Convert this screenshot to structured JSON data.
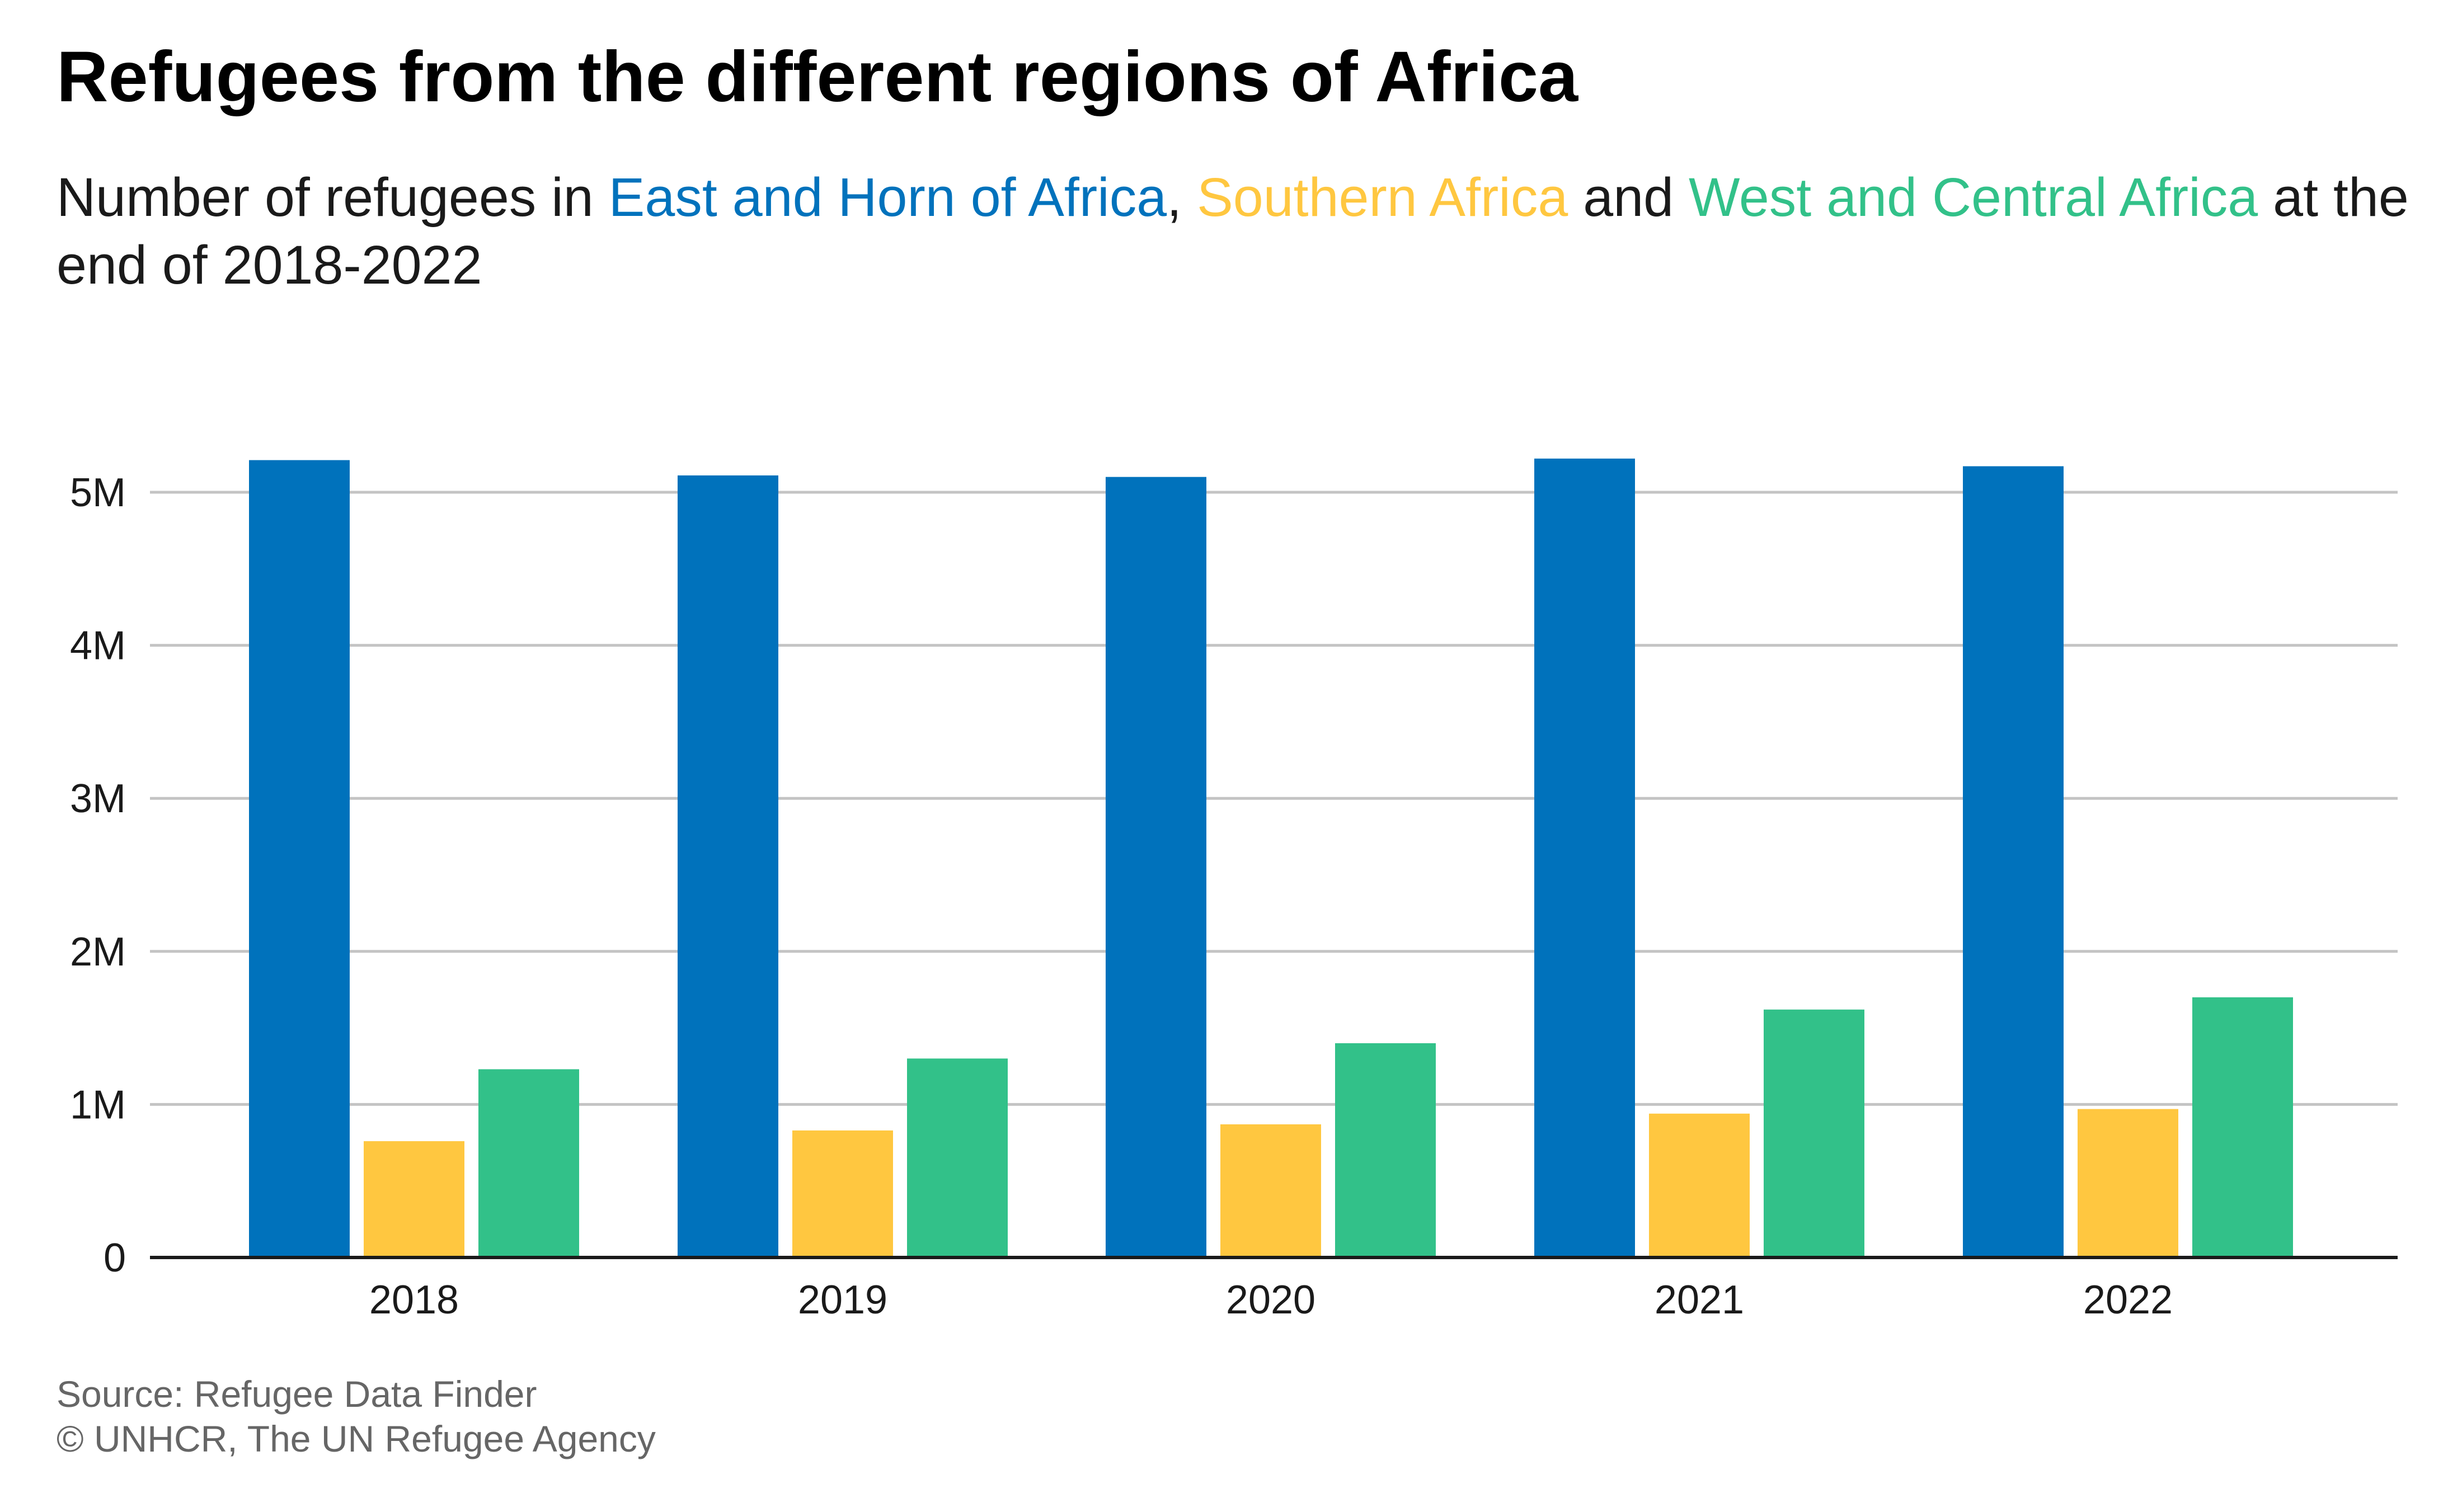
{
  "title": "Refugees from the different regions of Africa",
  "subtitle": {
    "prefix": "Number of refugees in ",
    "sep1": ", ",
    "sep2": " and ",
    "suffix": " at the end of 2018-2022"
  },
  "footer": {
    "source": "Source: Refugee Data Finder",
    "credit": "© UNHCR, The UN Refugee Agency"
  },
  "chart_data": {
    "type": "bar",
    "title": "Refugees from the different regions of Africa",
    "subtitle": "Number of refugees in East and Horn of Africa, Southern Africa and West and Central Africa at the end of 2018-2022",
    "xlabel": "",
    "ylabel": "",
    "categories": [
      "2018",
      "2019",
      "2020",
      "2021",
      "2022"
    ],
    "ylim": [
      0,
      5000000
    ],
    "yticks": [
      0,
      1000000,
      2000000,
      3000000,
      4000000,
      5000000
    ],
    "ytick_labels": [
      "0",
      "1M",
      "2M",
      "3M",
      "4M",
      "5M"
    ],
    "grid": true,
    "legend": "in-subtitle",
    "series": [
      {
        "name": "East and Horn of Africa",
        "color": "#0072bc",
        "values": [
          5210000,
          5110000,
          5100000,
          5220000,
          5170000
        ]
      },
      {
        "name": "Southern Africa",
        "color": "#ffc740",
        "values": [
          760000,
          830000,
          870000,
          940000,
          970000
        ]
      },
      {
        "name": "West and Central Africa",
        "color": "#32c189",
        "values": [
          1230000,
          1300000,
          1400000,
          1620000,
          1700000
        ]
      }
    ]
  }
}
